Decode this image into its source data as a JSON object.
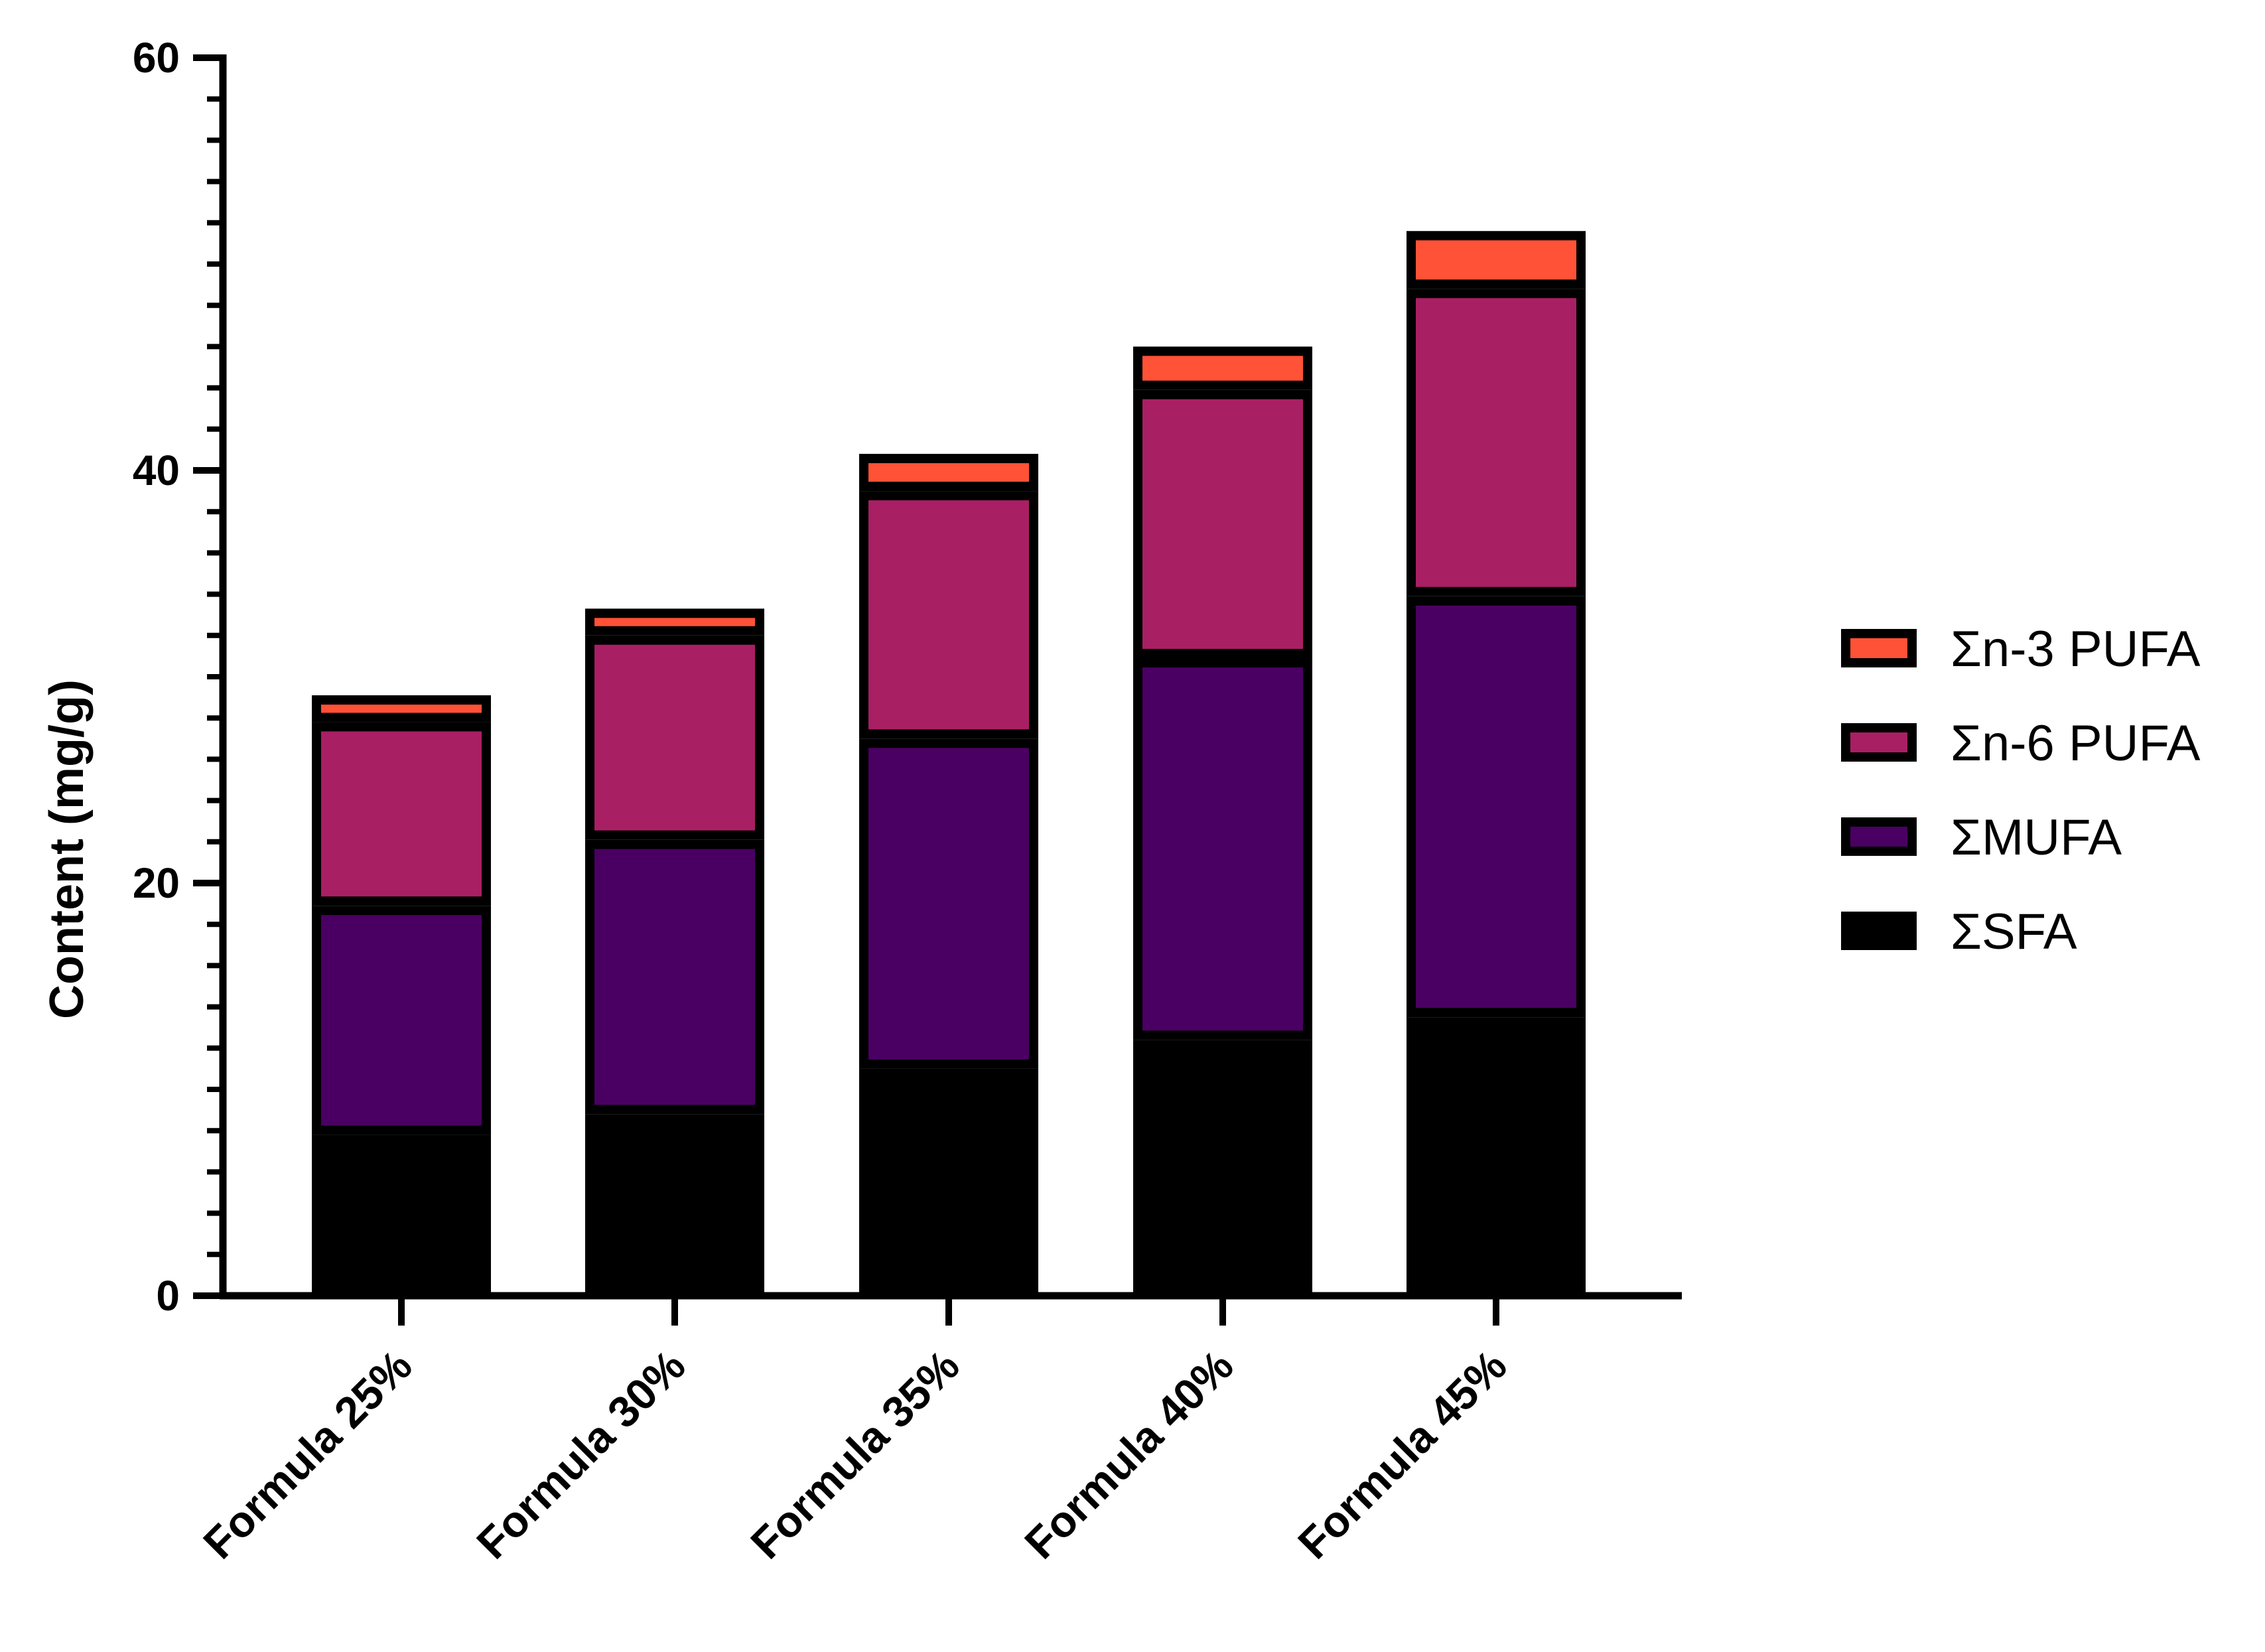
{
  "chart_data": {
    "type": "bar",
    "stacked": true,
    "title": "",
    "xlabel": "",
    "ylabel": "Content (mg/g)",
    "ylim": [
      0,
      60
    ],
    "yticks": [
      0,
      20,
      40,
      60
    ],
    "categories": [
      "Formula 25%",
      "Formula 30%",
      "Formula 35%",
      "Formula 40%",
      "Formula 45%"
    ],
    "series": [
      {
        "name": "ΣSFA",
        "color": "#000000",
        "values": [
          7.8,
          8.8,
          11.0,
          12.4,
          13.5
        ]
      },
      {
        "name": "ΣMUFA",
        "color": "#4a0062",
        "values": [
          11.1,
          13.3,
          16.0,
          18.5,
          20.4
        ]
      },
      {
        "name": "Σn-6 PUFA",
        "color": "#a91f64",
        "values": [
          8.9,
          9.9,
          12.0,
          13.0,
          14.9
        ]
      },
      {
        "name": "Σn-3 PUFA",
        "color": "#ff5236",
        "values": [
          1.3,
          1.3,
          1.8,
          2.1,
          2.8
        ]
      }
    ],
    "legend": {
      "position": "right",
      "order": [
        "Σn-3 PUFA",
        "Σn-6 PUFA",
        "ΣMUFA",
        "ΣSFA"
      ]
    },
    "grid": false
  }
}
